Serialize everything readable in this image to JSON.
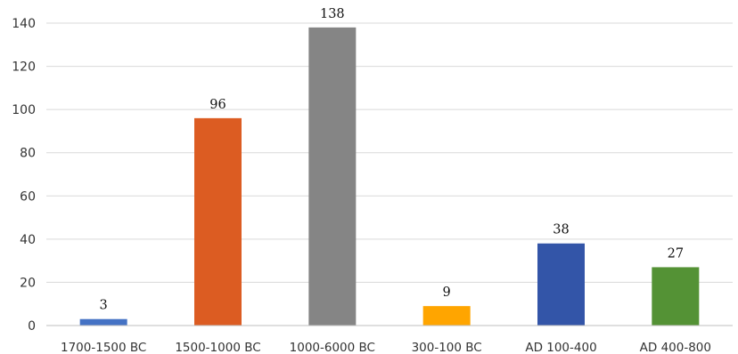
{
  "chart_data": {
    "type": "bar",
    "categories": [
      "1700-1500 BC",
      "1500-1000 BC",
      "1000-6000 BC",
      "300-100 BC",
      "AD 100-400",
      "AD 400-800"
    ],
    "values": [
      3,
      96,
      138,
      9,
      38,
      27
    ],
    "value_labels": [
      "3",
      "96",
      "138",
      "9",
      "38",
      "27"
    ],
    "colors": [
      "#4472c4",
      "#dc5c22",
      "#858585",
      "#ffa500",
      "#3355a8",
      "#549235"
    ],
    "ylim": [
      0,
      140
    ],
    "yticks": [
      0,
      20,
      40,
      60,
      80,
      100,
      120,
      140
    ],
    "ytick_labels": [
      "0",
      "20",
      "40",
      "60",
      "80",
      "100",
      "120",
      "140"
    ],
    "grid": true,
    "legend": "none",
    "title": "",
    "xlabel": "",
    "ylabel": ""
  }
}
